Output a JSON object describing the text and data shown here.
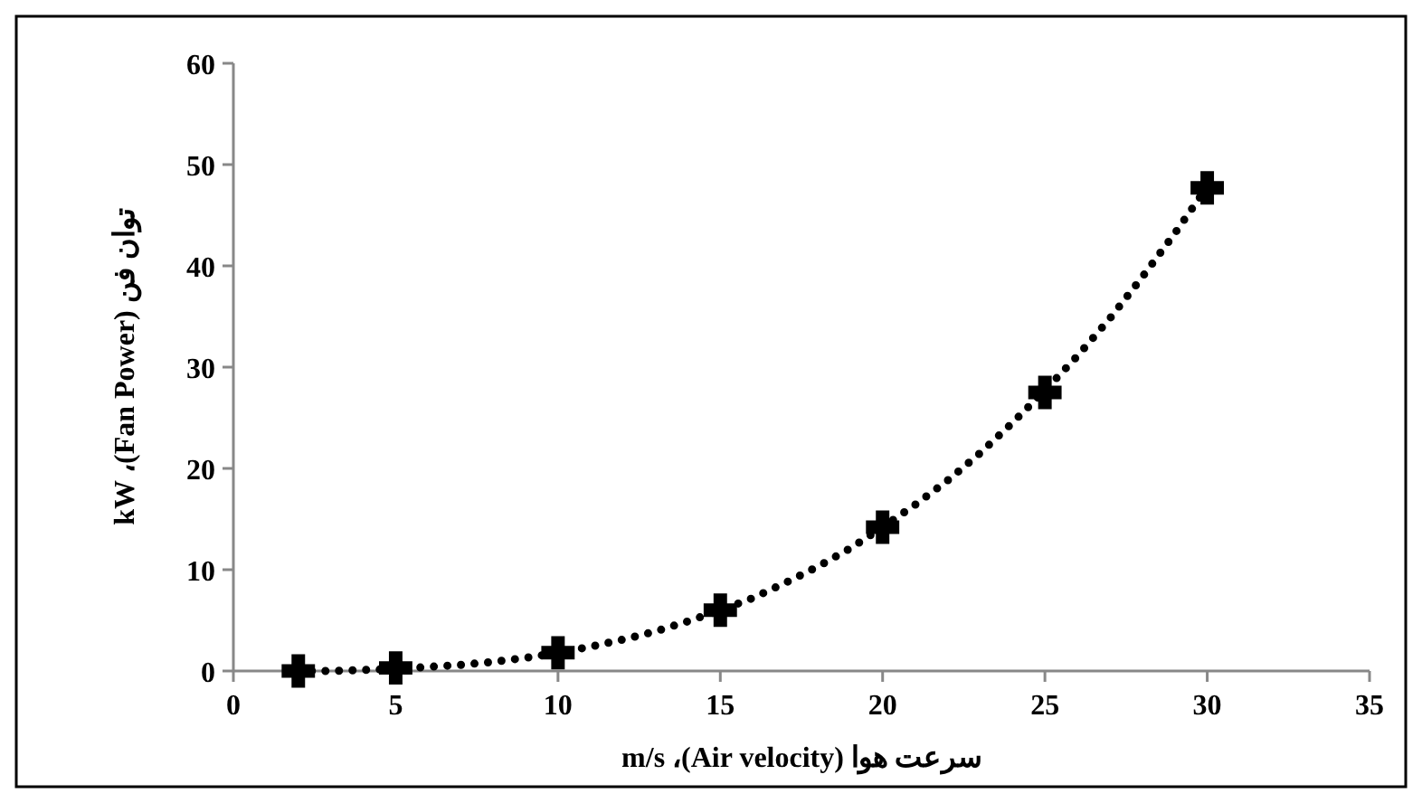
{
  "chart_data": {
    "type": "scatter",
    "xlabel": "سرعت هوا (Air velocity)، m/s",
    "ylabel": "توان فن (Fan Power)، kW",
    "xlim": [
      0,
      35
    ],
    "xticks": [
      0,
      5,
      10,
      15,
      20,
      25,
      30,
      35
    ],
    "ylim": [
      0,
      60
    ],
    "yticks": [
      0,
      10,
      20,
      30,
      40,
      50,
      60
    ],
    "grid": false,
    "series": [
      {
        "type": "line",
        "color": "#000000",
        "line_style": "dotted",
        "marker": "none",
        "x": [
          2,
          3,
          4,
          5,
          6,
          7,
          8,
          9,
          10,
          11,
          12,
          13,
          14,
          15,
          16,
          17,
          18,
          19,
          20,
          21,
          22,
          23,
          24,
          25,
          26,
          27,
          28,
          29,
          30
        ],
        "values": [
          0.0,
          0.0,
          0.1,
          0.2,
          0.4,
          0.6,
          0.9,
          1.3,
          1.8,
          2.4,
          3.1,
          3.9,
          4.9,
          6.0,
          7.2,
          8.7,
          10.3,
          12.1,
          14.2,
          16.4,
          18.8,
          21.5,
          24.5,
          27.7,
          31.1,
          34.8,
          38.9,
          43.2,
          47.8
        ]
      },
      {
        "color": "#000000",
        "marker": "cross",
        "x": [
          2,
          5,
          10,
          15,
          20,
          25,
          30
        ],
        "values": [
          0.0,
          0.3,
          1.8,
          6.0,
          14.2,
          27.5,
          47.7
        ]
      }
    ]
  }
}
